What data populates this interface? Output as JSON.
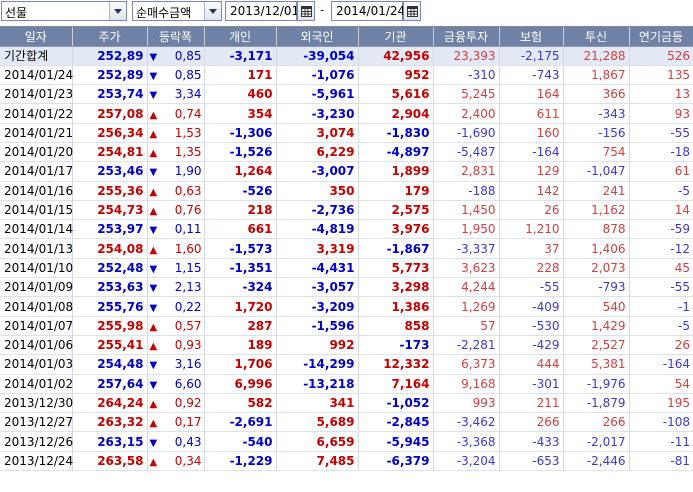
{
  "toolbar": {
    "market_select": "선물",
    "type_select": "순매수금액",
    "start_date": "2013/12/01",
    "end_date": "2014/01/24",
    "separator": "-"
  },
  "columns": [
    "일자",
    "주가",
    "등락폭",
    "개인",
    "외국인",
    "기관",
    "금융투자",
    "보험",
    "투신",
    "연기금등"
  ],
  "rows": [
    {
      "date": "기간합계",
      "price": "252,89",
      "dir": "down",
      "change": "0,85",
      "indiv": "-3,171",
      "foreign": "-39,054",
      "inst": "42,956",
      "fin": "23,393",
      "ins": "-2,175",
      "trust": "21,288",
      "pension": "526"
    },
    {
      "date": "2014/01/24",
      "price": "252,89",
      "dir": "down",
      "change": "0,85",
      "indiv": "171",
      "foreign": "-1,076",
      "inst": "952",
      "fin": "-310",
      "ins": "-743",
      "trust": "1,867",
      "pension": "135"
    },
    {
      "date": "2014/01/23",
      "price": "253,74",
      "dir": "down",
      "change": "3,34",
      "indiv": "460",
      "foreign": "-5,961",
      "inst": "5,616",
      "fin": "5,245",
      "ins": "164",
      "trust": "366",
      "pension": "13"
    },
    {
      "date": "2014/01/22",
      "price": "257,08",
      "dir": "up",
      "change": "0,74",
      "indiv": "354",
      "foreign": "-3,230",
      "inst": "2,904",
      "fin": "2,400",
      "ins": "611",
      "trust": "-343",
      "pension": "93"
    },
    {
      "date": "2014/01/21",
      "price": "256,34",
      "dir": "up",
      "change": "1,53",
      "indiv": "-1,306",
      "foreign": "3,074",
      "inst": "-1,830",
      "fin": "-1,690",
      "ins": "160",
      "trust": "-156",
      "pension": "-55"
    },
    {
      "date": "2014/01/20",
      "price": "254,81",
      "dir": "up",
      "change": "1,35",
      "indiv": "-1,526",
      "foreign": "6,229",
      "inst": "-4,897",
      "fin": "-5,487",
      "ins": "-164",
      "trust": "754",
      "pension": "-18"
    },
    {
      "date": "2014/01/17",
      "price": "253,46",
      "dir": "down",
      "change": "1,90",
      "indiv": "1,264",
      "foreign": "-3,007",
      "inst": "1,899",
      "fin": "2,831",
      "ins": "129",
      "trust": "-1,047",
      "pension": "61"
    },
    {
      "date": "2014/01/16",
      "price": "255,36",
      "dir": "up",
      "change": "0,63",
      "indiv": "-526",
      "foreign": "350",
      "inst": "179",
      "fin": "-188",
      "ins": "142",
      "trust": "241",
      "pension": "-5"
    },
    {
      "date": "2014/01/15",
      "price": "254,73",
      "dir": "up",
      "change": "0,76",
      "indiv": "218",
      "foreign": "-2,736",
      "inst": "2,575",
      "fin": "1,450",
      "ins": "26",
      "trust": "1,162",
      "pension": "14"
    },
    {
      "date": "2014/01/14",
      "price": "253,97",
      "dir": "down",
      "change": "0,11",
      "indiv": "661",
      "foreign": "-4,819",
      "inst": "3,976",
      "fin": "1,950",
      "ins": "1,210",
      "trust": "878",
      "pension": "-59"
    },
    {
      "date": "2014/01/13",
      "price": "254,08",
      "dir": "up",
      "change": "1,60",
      "indiv": "-1,573",
      "foreign": "3,319",
      "inst": "-1,867",
      "fin": "-3,337",
      "ins": "37",
      "trust": "1,406",
      "pension": "-12"
    },
    {
      "date": "2014/01/10",
      "price": "252,48",
      "dir": "down",
      "change": "1,15",
      "indiv": "-1,351",
      "foreign": "-4,431",
      "inst": "5,773",
      "fin": "3,623",
      "ins": "228",
      "trust": "2,073",
      "pension": "45"
    },
    {
      "date": "2014/01/09",
      "price": "253,63",
      "dir": "down",
      "change": "2,13",
      "indiv": "-324",
      "foreign": "-3,057",
      "inst": "3,298",
      "fin": "4,244",
      "ins": "-55",
      "trust": "-793",
      "pension": "-55"
    },
    {
      "date": "2014/01/08",
      "price": "255,76",
      "dir": "down",
      "change": "0,22",
      "indiv": "1,720",
      "foreign": "-3,209",
      "inst": "1,386",
      "fin": "1,269",
      "ins": "-409",
      "trust": "540",
      "pension": "-1"
    },
    {
      "date": "2014/01/07",
      "price": "255,98",
      "dir": "up",
      "change": "0,57",
      "indiv": "287",
      "foreign": "-1,596",
      "inst": "858",
      "fin": "57",
      "ins": "-530",
      "trust": "1,429",
      "pension": "-5"
    },
    {
      "date": "2014/01/06",
      "price": "255,41",
      "dir": "up",
      "change": "0,93",
      "indiv": "189",
      "foreign": "992",
      "inst": "-173",
      "fin": "-2,281",
      "ins": "-429",
      "trust": "2,527",
      "pension": "26"
    },
    {
      "date": "2014/01/03",
      "price": "254,48",
      "dir": "down",
      "change": "3,16",
      "indiv": "1,706",
      "foreign": "-14,299",
      "inst": "12,332",
      "fin": "6,373",
      "ins": "444",
      "trust": "5,381",
      "pension": "-164"
    },
    {
      "date": "2014/01/02",
      "price": "257,64",
      "dir": "down",
      "change": "6,60",
      "indiv": "6,996",
      "foreign": "-13,218",
      "inst": "7,164",
      "fin": "9,168",
      "ins": "-301",
      "trust": "-1,976",
      "pension": "54"
    },
    {
      "date": "2013/12/30",
      "price": "264,24",
      "dir": "up",
      "change": "0,92",
      "indiv": "582",
      "foreign": "341",
      "inst": "-1,052",
      "fin": "993",
      "ins": "211",
      "trust": "-1,879",
      "pension": "195"
    },
    {
      "date": "2013/12/27",
      "price": "263,32",
      "dir": "up",
      "change": "0,17",
      "indiv": "-2,691",
      "foreign": "5,689",
      "inst": "-2,845",
      "fin": "-3,462",
      "ins": "266",
      "trust": "266",
      "pension": "-108"
    },
    {
      "date": "2013/12/26",
      "price": "263,15",
      "dir": "down",
      "change": "0,43",
      "indiv": "-540",
      "foreign": "6,659",
      "inst": "-5,945",
      "fin": "-3,368",
      "ins": "-433",
      "trust": "-2,017",
      "pension": "-11"
    },
    {
      "date": "2013/12/24",
      "price": "263,58",
      "dir": "up",
      "change": "0,34",
      "indiv": "-1,229",
      "foreign": "7,485",
      "inst": "-6,379",
      "fin": "-3,204",
      "ins": "-653",
      "trust": "-2,446",
      "pension": "-81"
    }
  ],
  "colors": {
    "header_bg": "#6f82a6",
    "up": "#c40000",
    "down": "#0000c8",
    "total_row_bg": "#e3e9f5"
  },
  "icons": {
    "up": "triangle-up",
    "down": "triangle-down",
    "calendar": "calendar-icon",
    "dropdown": "chevron-down-icon"
  }
}
